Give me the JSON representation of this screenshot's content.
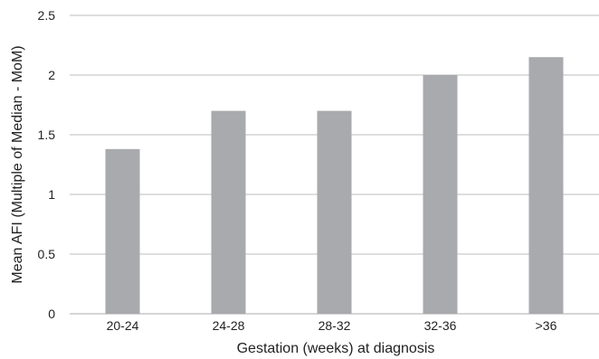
{
  "chart_data": {
    "type": "bar",
    "categories": [
      "20-24",
      "24-28",
      "28-32",
      "32-36",
      ">36"
    ],
    "values": [
      1.38,
      1.7,
      1.7,
      2.0,
      2.15
    ],
    "xlabel": "Gestation (weeks) at diagnosis",
    "ylabel": "Mean AFI (Multiple of Median - MoM)",
    "ylim": [
      0,
      2.5
    ],
    "yticks": [
      0,
      0.5,
      1,
      1.5,
      2,
      2.5
    ],
    "ytick_labels": [
      "0",
      "0.5",
      "1",
      "1.5",
      "2",
      "2.5"
    ],
    "grid": true,
    "legend": "none",
    "bar_color": "#a9aaad",
    "grid_color": "#bdbdbd"
  }
}
